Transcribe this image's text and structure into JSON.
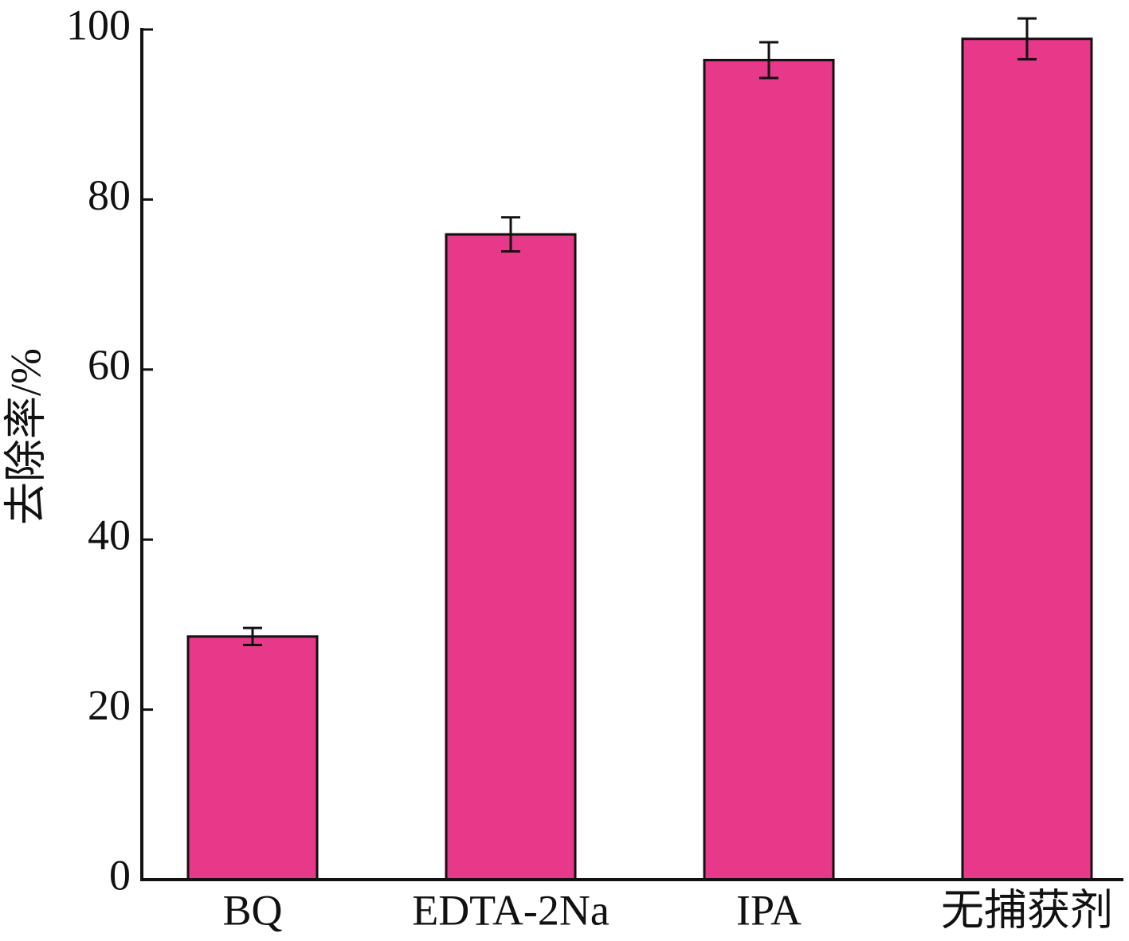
{
  "chart_data": {
    "type": "bar",
    "y_label": "去除率/%",
    "categories": [
      "BQ",
      "EDTA-2Na",
      "IPA",
      "无捕获剂"
    ],
    "values": [
      28.6,
      75.9,
      96.4,
      98.9
    ],
    "errors": [
      1.0,
      2.0,
      2.1,
      2.4
    ],
    "color": "#e8388a",
    "ylim": [
      0,
      100
    ],
    "yticks": [
      0,
      20,
      40,
      60,
      80,
      100
    ],
    "grid": false
  }
}
